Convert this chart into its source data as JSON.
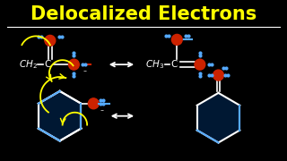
{
  "title": "Delocalized Electrons",
  "title_color": "#FFFF00",
  "background_color": "#000000",
  "white": "#FFFFFF",
  "yellow": "#FFFF00",
  "red": "#CC2200",
  "blue": "#55AAFF",
  "title_fontsize": 15,
  "body_fontsize": 7.5
}
